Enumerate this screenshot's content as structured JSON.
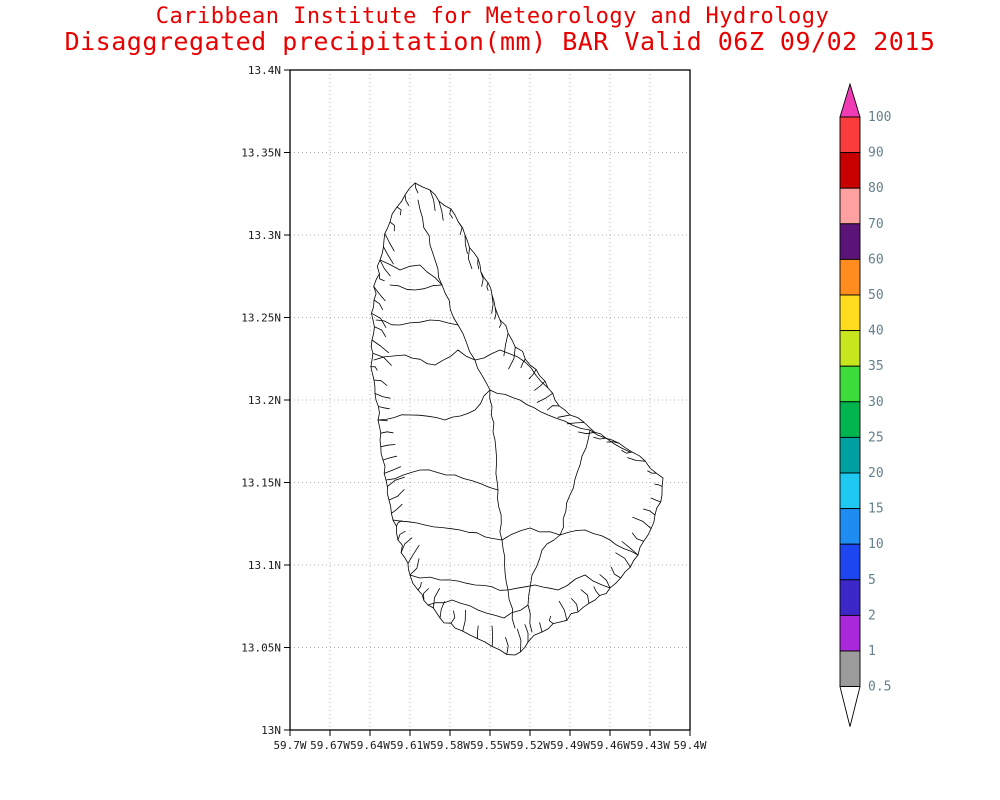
{
  "header": {
    "institution": "Caribbean Institute for Meteorology and Hydrology",
    "product_line": "Disaggregated precipitation(mm) BAR Valid 06Z 09/02 2015",
    "title_color": "#e80000"
  },
  "axes": {
    "y_ticks": [
      "13.4N",
      "13.35N",
      "13.3N",
      "13.25N",
      "13.2N",
      "13.15N",
      "13.1N",
      "13.05N",
      "13N"
    ],
    "x_ticks": [
      "59.7W",
      "59.67W",
      "59.64W",
      "59.61W",
      "59.58W",
      "59.55W",
      "59.52W",
      "59.49W",
      "59.46W",
      "59.43W",
      "59.4W"
    ]
  },
  "legend": {
    "labels": [
      "100",
      "90",
      "80",
      "70",
      "60",
      "50",
      "40",
      "35",
      "30",
      "25",
      "20",
      "15",
      "10",
      "5",
      "2",
      "1",
      "0.5"
    ],
    "segment_colors": [
      "#fa3c3c",
      "#c80000",
      "#ffa0a0",
      "#5a1478",
      "#ff8c1e",
      "#ffdc1e",
      "#c8e61e",
      "#3cdc3c",
      "#00b450",
      "#00a0a0",
      "#1ec8f0",
      "#1e8cf0",
      "#1e46f0",
      "#3c28c8",
      "#aa28dc",
      "#9b9b9b"
    ],
    "arrow_top_color": "#f03cb4",
    "arrow_bottom_color": "#ffffff",
    "label_color": "#64808e"
  },
  "chart_data": {
    "type": "map",
    "title": "Disaggregated precipitation(mm) BAR Valid 06Z 09/02 2015",
    "region_label": "BAR",
    "valid_time": "06Z 09/02 2015",
    "lat_ticks": [
      "13N",
      "13.05N",
      "13.1N",
      "13.15N",
      "13.2N",
      "13.25N",
      "13.3N",
      "13.35N",
      "13.4N"
    ],
    "lon_ticks": [
      "59.7W",
      "59.67W",
      "59.64W",
      "59.61W",
      "59.58W",
      "59.55W",
      "59.52W",
      "59.49W",
      "59.46W",
      "59.43W",
      "59.4W"
    ],
    "colorbar_values": [
      100,
      90,
      80,
      70,
      60,
      50,
      40,
      35,
      30,
      25,
      20,
      15,
      10,
      5,
      2,
      1,
      0.5
    ],
    "shading": "no shaded precipitation areas visible (below 0.5 mm everywhere)"
  }
}
